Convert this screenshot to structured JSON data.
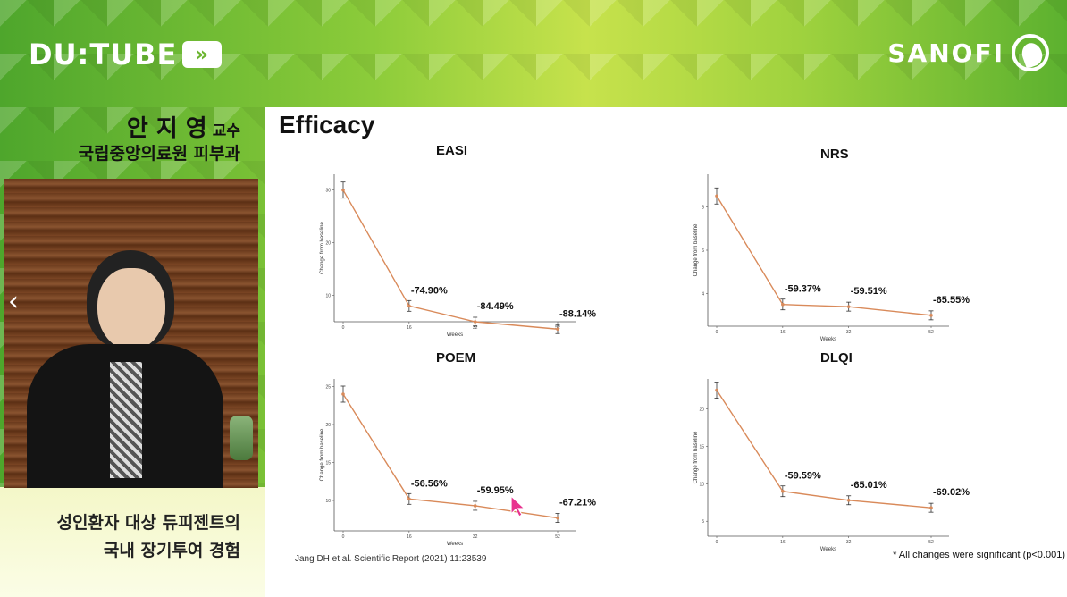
{
  "channel": {
    "logo_text": "DU:TUBE",
    "logo_arrow": "»"
  },
  "sponsor": {
    "logo_text": "SANOFI"
  },
  "speaker": {
    "name": "안 지 영",
    "title": "교수",
    "department": "국립중앙의료원 피부과"
  },
  "talk": {
    "line1": "성인환자 대상 듀피젠트의",
    "line2": "국내 장기투여 경험"
  },
  "navigation": {
    "prev_icon": "chevron-left-icon",
    "next_icon": "chevron-right-icon"
  },
  "slide": {
    "title": "Efficacy",
    "citation": "Jang DH et al. Scientific Report (2021) 11:23539",
    "footnote": "* All changes were significant (p<0.001)"
  },
  "colors": {
    "line": "#d98a5a",
    "error": "#333333",
    "background": "#ffffff"
  },
  "chart_data": [
    {
      "type": "line",
      "title": "EASI",
      "xlabel": "Weeks",
      "ylabel": "Change from baseline",
      "x": [
        0,
        16,
        32,
        52
      ],
      "xticks": [
        "0",
        "16",
        "32",
        "52"
      ],
      "yticks": [
        "10",
        "20",
        "30"
      ],
      "ylim": [
        5,
        33
      ],
      "series": [
        {
          "values": [
            30,
            8,
            5,
            3.6
          ]
        }
      ],
      "annotations": [
        "",
        "-74.90%",
        "-84.49%",
        "-88.14%"
      ]
    },
    {
      "type": "line",
      "title": "NRS",
      "xlabel": "Weeks",
      "ylabel": "Change from baseline",
      "x": [
        0,
        16,
        32,
        52
      ],
      "xticks": [
        "0",
        "16",
        "32",
        "52"
      ],
      "yticks": [
        "4",
        "6",
        "8"
      ],
      "ylim": [
        2.5,
        9.5
      ],
      "series": [
        {
          "values": [
            8.5,
            3.5,
            3.4,
            3.0
          ]
        }
      ],
      "annotations": [
        "",
        "-59.37%",
        "-59.51%",
        "-65.55%"
      ]
    },
    {
      "type": "line",
      "title": "POEM",
      "xlabel": "Weeks",
      "ylabel": "Change from baseline",
      "x": [
        0,
        16,
        32,
        52
      ],
      "xticks": [
        "0",
        "16",
        "32",
        "52"
      ],
      "yticks": [
        "10",
        "15",
        "20",
        "25"
      ],
      "ylim": [
        6,
        26
      ],
      "series": [
        {
          "values": [
            24,
            10.2,
            9.3,
            7.7
          ]
        }
      ],
      "annotations": [
        "",
        "-56.56%",
        "-59.95%",
        "-67.21%"
      ]
    },
    {
      "type": "line",
      "title": "DLQI",
      "xlabel": "Weeks",
      "ylabel": "Change from baseline",
      "x": [
        0,
        16,
        32,
        52
      ],
      "xticks": [
        "0",
        "16",
        "32",
        "52"
      ],
      "yticks": [
        "5",
        "10",
        "15",
        "20"
      ],
      "ylim": [
        3,
        24
      ],
      "series": [
        {
          "values": [
            22.5,
            9.0,
            7.8,
            6.8
          ]
        }
      ],
      "annotations": [
        "",
        "-59.59%",
        "-65.01%",
        "-69.02%"
      ]
    }
  ]
}
